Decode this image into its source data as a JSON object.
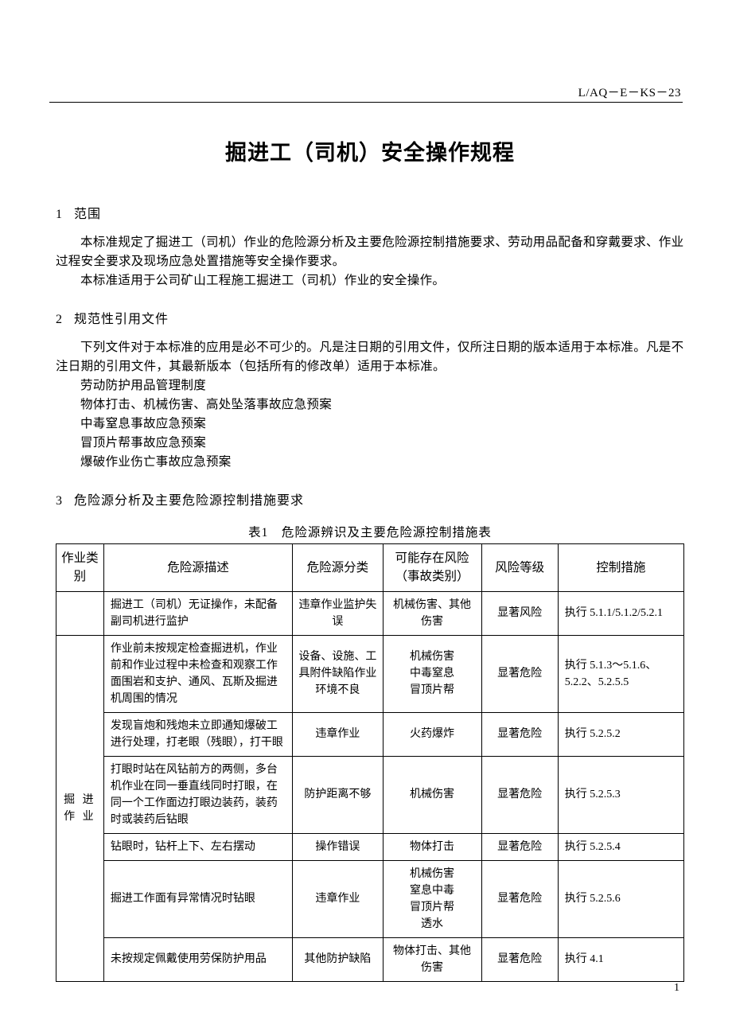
{
  "doc_code": "L/AQ－E－KS－23",
  "title": "掘进工（司机）安全操作规程",
  "s1": {
    "num": "1",
    "head": "范围",
    "p1": "本标准规定了掘进工（司机）作业的危险源分析及主要危险源控制措施要求、劳动用品配备和穿戴要求、作业过程安全要求及现场应急处置措施等安全操作要求。",
    "p2": "本标准适用于公司矿山工程施工掘进工（司机）作业的安全操作。"
  },
  "s2": {
    "num": "2",
    "head": "规范性引用文件",
    "p1": "下列文件对于本标准的应用是必不可少的。凡是注日期的引用文件，仅所注日期的版本适用于本标准。凡是不注日期的引用文件，其最新版本（包括所有的修改单）适用于本标准。",
    "ref1": "劳动防护用品管理制度",
    "ref2": "物体打击、机械伤害、高处坠落事故应急预案",
    "ref3": "中毒窒息事故应急预案",
    "ref4": "冒顶片帮事故应急预案",
    "ref5": "爆破作业伤亡事故应急预案"
  },
  "s3": {
    "num": "3",
    "head": "危险源分析及主要危险源控制措施要求",
    "caption": "表1　危险源辨识及主要危险源控制措施表"
  },
  "table": {
    "headers": {
      "c1": "作业类别",
      "c2": "危险源描述",
      "c3": "危险源分类",
      "c4": "可能存在风险（事故类别）",
      "c5": "风险等级",
      "c6": "控制措施"
    },
    "group_label": "掘 进作 业",
    "rows": [
      {
        "desc": "掘进工（司机）无证操作，未配备副司机进行监护",
        "cat": "违章作业监护失误",
        "risk": "机械伤害、其他伤害",
        "level": "显著风险",
        "ctrl": "执行 5.1.1/5.1.2/5.2.1"
      },
      {
        "desc": "作业前未按规定检查掘进机，作业前和作业过程中未检查和观察工作面围岩和支护、通风、瓦斯及掘进机周围的情况",
        "cat": "设备、设施、工具附件缺陷作业环境不良",
        "risk": "机械伤害中毒窒息冒顶片帮",
        "level": "显著危险",
        "ctrl": "执行 5.1.3～5.1.6、5.2.2、5.2.5.5"
      },
      {
        "desc": "发现盲炮和残炮未立即通知爆破工进行处理，打老眼（残眼），打干眼",
        "cat": "违章作业",
        "risk": "火药爆炸",
        "level": "显著危险",
        "ctrl": "执行 5.2.5.2"
      },
      {
        "desc": "打眼时站在风钻前方的两侧，多台机作业在同一垂直线同时打眼，在同一个工作面边打眼边装药，装药时或装药后钻眼",
        "cat": "防护距离不够",
        "risk": "机械伤害",
        "level": "显著危险",
        "ctrl": "执行 5.2.5.3"
      },
      {
        "desc": "钻眼时，钻杆上下、左右摆动",
        "cat": "操作错误",
        "risk": "物体打击",
        "level": "显著危险",
        "ctrl": "执行 5.2.5.4"
      },
      {
        "desc": "掘进工作面有异常情况时钻眼",
        "cat": "违章作业",
        "risk": "机械伤害窒息中毒冒顶片帮透水",
        "level": "显著危险",
        "ctrl": "执行 5.2.5.6"
      },
      {
        "desc": "未按规定佩戴使用劳保防护用品",
        "cat": "其他防护缺陷",
        "risk": "物体打击、其他伤害",
        "level": "显著危险",
        "ctrl": "执行 4.1"
      }
    ],
    "risk_multiline": {
      "r1": "机械伤害\n中毒窒息\n冒顶片帮",
      "r5": "机械伤害\n窒息中毒\n冒顶片帮\n透水"
    }
  },
  "page_number": "1"
}
